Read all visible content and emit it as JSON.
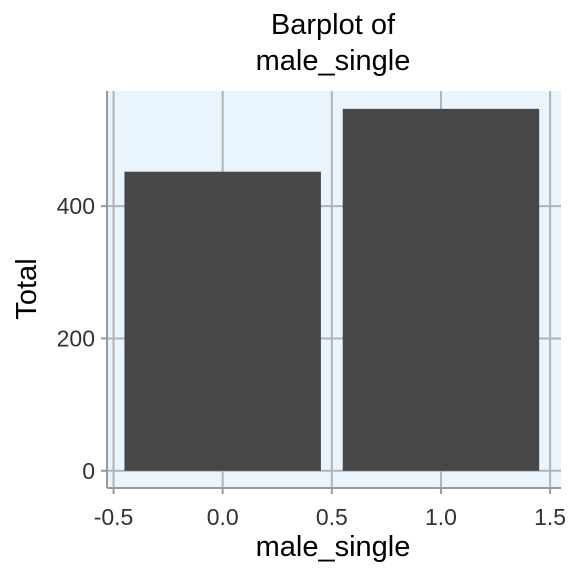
{
  "chart_data": {
    "type": "bar",
    "title_lines": [
      "Barplot of",
      "male_single"
    ],
    "xlabel": "male_single",
    "ylabel": "Total",
    "categories": [
      0,
      1
    ],
    "values": [
      452,
      547
    ],
    "bar_width": 0.9,
    "xlim": [
      -0.53,
      1.55
    ],
    "ylim": [
      -26,
      574
    ],
    "x_ticks": [
      -0.5,
      0.0,
      0.5,
      1.0,
      1.5
    ],
    "x_tick_labels": [
      "-0.5",
      "0.0",
      "0.5",
      "1.0",
      "1.5"
    ],
    "y_ticks": [
      0,
      200,
      400
    ],
    "y_tick_labels": [
      "0",
      "200",
      "400"
    ],
    "grid": true,
    "legend": "none",
    "colors": {
      "bar": "#474747",
      "panel_background": "#eaf4fd",
      "grid": "#b3b3b3",
      "axis": "#999999"
    }
  }
}
